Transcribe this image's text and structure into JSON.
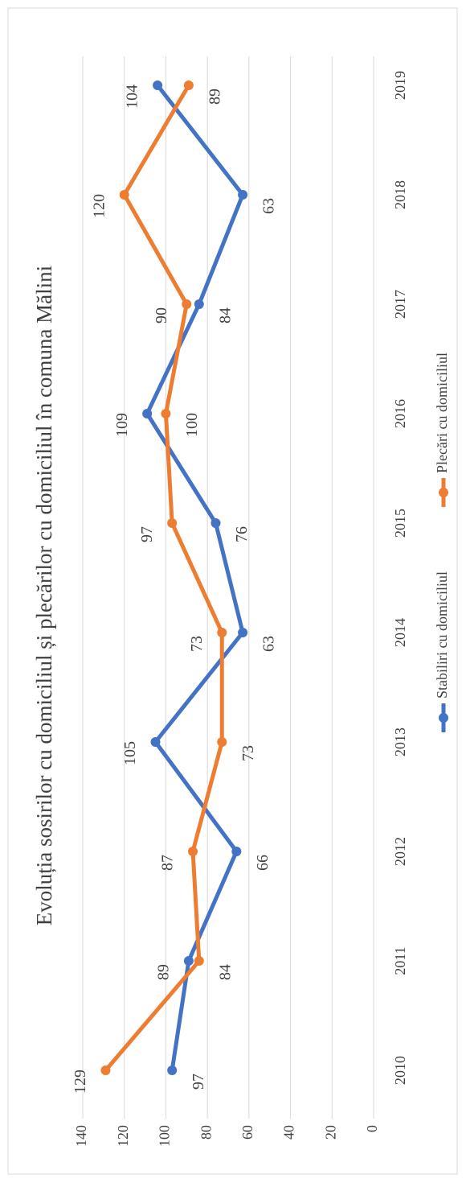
{
  "chart_data": {
    "type": "line",
    "title": "Evoluția sosirilor cu domiciliul și plecărilor cu domiciliul în comuna Mălini",
    "categories": [
      "2010",
      "2011",
      "2012",
      "2013",
      "2014",
      "2015",
      "2016",
      "2017",
      "2018",
      "2019"
    ],
    "series": [
      {
        "name": "Stabiliri cu domiciliul",
        "color": "#4472c4",
        "values": [
          97,
          89,
          66,
          105,
          63,
          76,
          109,
          84,
          63,
          104
        ]
      },
      {
        "name": "Plecări cu domiciliul",
        "color": "#ed7d31",
        "values": [
          129,
          84,
          87,
          73,
          73,
          97,
          100,
          90,
          120,
          89
        ]
      }
    ],
    "ylim": [
      0,
      140
    ],
    "yticks": [
      0,
      20,
      40,
      60,
      80,
      100,
      120,
      140
    ],
    "grid": true,
    "legend": "bottom"
  }
}
